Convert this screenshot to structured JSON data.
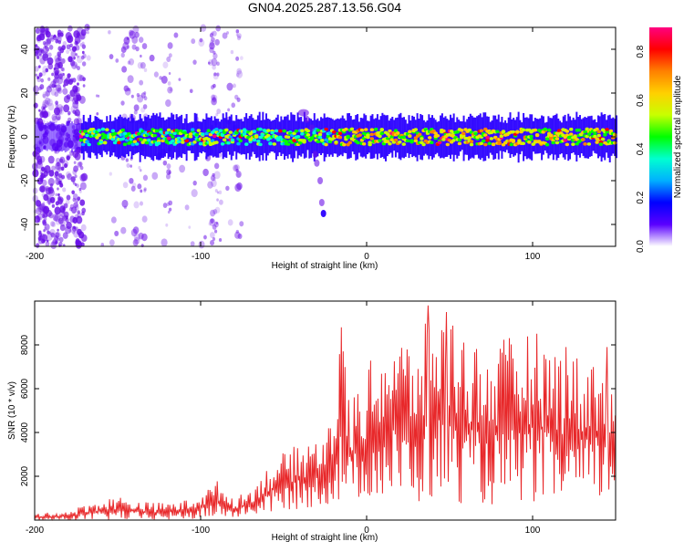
{
  "title": "GN04.2025.287.13.56.G04",
  "chart_data": [
    {
      "type": "heatmap",
      "xlabel": "Height of straight line (km)",
      "ylabel": "Frequency (Hz)",
      "xlim": [
        -200,
        150
      ],
      "ylim": [
        -50,
        50
      ],
      "x_ticks": [
        -200,
        -100,
        0,
        100
      ],
      "y_ticks": [
        -40,
        -20,
        0,
        20,
        40
      ],
      "colorbar": {
        "label": "Normalized spectral amplitude",
        "range": [
          0,
          0.9
        ],
        "ticks": [
          "0.0",
          "0.2",
          "0.4",
          "0.6",
          "0.8"
        ],
        "colors": [
          "#ffffff",
          "#5a00ff",
          "#0000ff",
          "#00b0ff",
          "#00ffd0",
          "#00ff00",
          "#c8ff00",
          "#ffd000",
          "#ff8000",
          "#ff0000",
          "#ff0080"
        ]
      },
      "signal": {
        "center_frequency_hz": 0,
        "bandwidth_hz": 8,
        "strong_start_km": -172,
        "strong_end_km": 150,
        "notes": "Horizontal band near 0 Hz; diffuse purple scatter between -200 and -75 km; weak streak from -35 km (10 Hz) down to -25 km (-36 Hz)"
      },
      "noise_columns_km": [
        -195,
        -185,
        -175,
        -145,
        -140,
        -135,
        -120,
        -93,
        -90,
        -78
      ]
    },
    {
      "type": "line",
      "xlabel": "Height of straight line (km)",
      "ylabel": "SNR (10 * v/v)",
      "xlim": [
        -200,
        150
      ],
      "ylim": [
        0,
        10000
      ],
      "x_ticks": [
        -200,
        -100,
        0,
        100
      ],
      "y_ticks": [
        2000,
        4000,
        6000,
        8000
      ],
      "color": "#e8282a",
      "x": [
        -200,
        -190,
        -180,
        -170,
        -160,
        -150,
        -140,
        -130,
        -120,
        -110,
        -100,
        -90,
        -80,
        -70,
        -60,
        -50,
        -40,
        -30,
        -20,
        -15,
        -10,
        -5,
        0,
        10,
        20,
        30,
        40,
        50,
        60,
        70,
        80,
        90,
        100,
        110,
        120,
        130,
        140,
        150
      ],
      "envelope_max": [
        300,
        350,
        400,
        700,
        900,
        1100,
        900,
        800,
        800,
        900,
        1200,
        1800,
        1000,
        1400,
        2400,
        3100,
        3500,
        3900,
        4800,
        8800,
        5400,
        6200,
        7000,
        8200,
        8600,
        8000,
        9800,
        9500,
        8700,
        7800,
        8200,
        8500,
        8800,
        8000,
        7900,
        7400,
        7900,
        5500
      ],
      "envelope_min": [
        0,
        0,
        0,
        0,
        0,
        0,
        0,
        0,
        0,
        0,
        50,
        100,
        100,
        200,
        300,
        400,
        500,
        600,
        700,
        800,
        800,
        900,
        1000,
        900,
        800,
        700,
        800,
        700,
        800,
        700,
        600,
        700,
        800,
        700,
        600,
        700,
        800,
        1000
      ],
      "peak_values": [
        {
          "x": -15,
          "y": 8800
        },
        {
          "x": 37,
          "y": 9800
        },
        {
          "x": 48,
          "y": 9500
        },
        {
          "x": 120,
          "y": 7900
        },
        {
          "x": 145,
          "y": 7900
        }
      ]
    }
  ]
}
